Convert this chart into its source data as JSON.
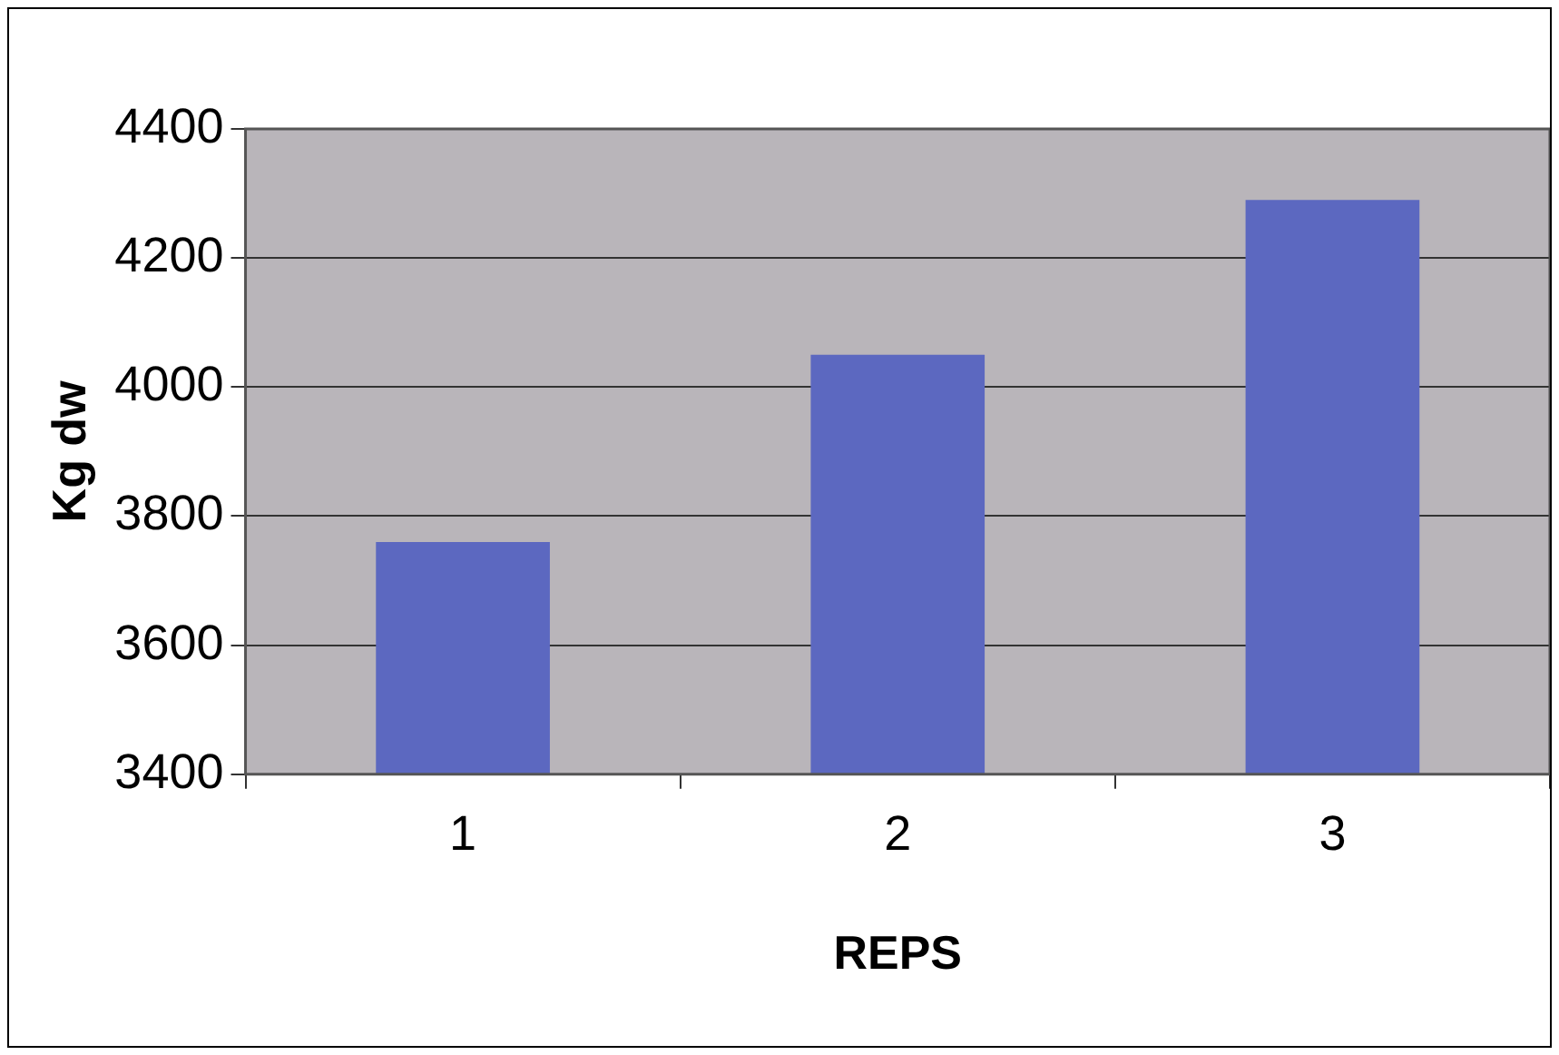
{
  "chart_data": {
    "type": "bar",
    "xlabel": "REPS",
    "ylabel": "Kg dw",
    "categories": [
      "1",
      "2",
      "3"
    ],
    "series": [
      {
        "color": "#5c68c0",
        "values": [
          3760,
          4050,
          4290
        ]
      }
    ],
    "ylim": [
      3400,
      4400
    ],
    "yticks": [
      3400,
      3600,
      3800,
      4000,
      4200,
      4400
    ],
    "grid": "y",
    "legend": false
  }
}
